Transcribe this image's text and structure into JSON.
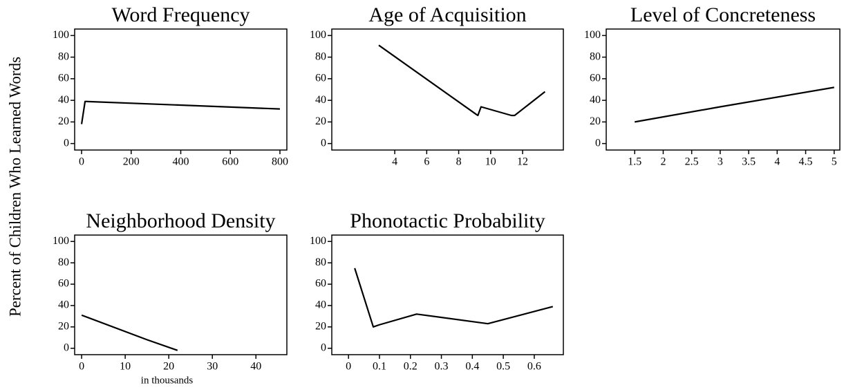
{
  "ylabel": "Percent of Children Who Learned Words",
  "chart_data": [
    {
      "type": "line",
      "title": "Word Frequency",
      "x": [
        0,
        14,
        800
      ],
      "values": [
        18,
        39,
        32
      ],
      "color": "#000000",
      "xlim": [
        -28,
        828
      ],
      "xticks": [
        0,
        200,
        400,
        600,
        800
      ],
      "ylim": [
        -6,
        106
      ],
      "yticks": [
        0,
        20,
        40,
        60,
        80,
        100
      ]
    },
    {
      "type": "line",
      "title": "Age of Acquisition",
      "x": [
        3,
        9.1,
        9.2,
        9.4,
        11.3,
        11.5,
        13.4
      ],
      "values": [
        91,
        27,
        26,
        34,
        26,
        26,
        48
      ],
      "color": "#000000",
      "xlim": [
        0.06,
        14.55
      ],
      "xticks": [
        4,
        6,
        8,
        10,
        12
      ],
      "ylim": [
        -6,
        106
      ],
      "yticks": [
        0,
        20,
        40,
        60,
        80,
        100
      ]
    },
    {
      "type": "line",
      "title": "Level of Concreteness",
      "x": [
        1.5,
        3,
        5
      ],
      "values": [
        20,
        34,
        52
      ],
      "color": "#000000",
      "xlim": [
        1.0,
        5.1
      ],
      "xticks": [
        1.5,
        2,
        2.5,
        3,
        3.5,
        4,
        4.5,
        5
      ],
      "ylim": [
        -6,
        106
      ],
      "yticks": [
        0,
        20,
        40,
        60,
        80,
        100
      ]
    },
    {
      "type": "line",
      "title": "Neighborhood Density",
      "xlabel": "in thousands",
      "x": [
        0,
        15,
        22
      ],
      "values": [
        31,
        8,
        -2
      ],
      "color": "#000000",
      "xlim": [
        -1.6,
        47.1
      ],
      "xticks": [
        0,
        10,
        20,
        30,
        40
      ],
      "ylim": [
        -6,
        106
      ],
      "yticks": [
        0,
        20,
        40,
        60,
        80,
        100
      ]
    },
    {
      "type": "line",
      "title": "Phonotactic Probability",
      "x": [
        0.02,
        0.08,
        0.1,
        0.22,
        0.45,
        0.66
      ],
      "values": [
        75,
        20,
        22,
        32,
        23,
        39
      ],
      "color": "#000000",
      "xlim": [
        -0.054,
        0.694
      ],
      "xticks": [
        0,
        0.1,
        0.2,
        0.3,
        0.4,
        0.5,
        0.6
      ],
      "ylim": [
        -6,
        106
      ],
      "yticks": [
        0,
        20,
        40,
        60,
        80,
        100
      ]
    }
  ]
}
